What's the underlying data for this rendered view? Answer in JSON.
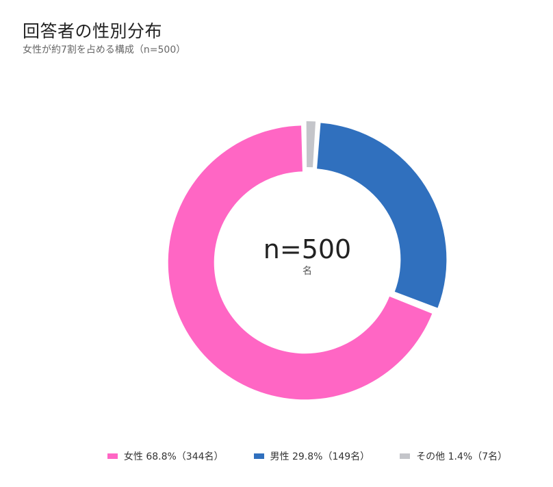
{
  "header": {
    "title": "回答者の性別分布",
    "subtitle": "女性が約7割を占める構成（n=500）"
  },
  "center": {
    "value": "n=500",
    "unit": "名"
  },
  "legend": [
    {
      "label": "女性 68.8%（344名）",
      "color": "#ff66c4"
    },
    {
      "label": "男性 29.8%（149名）",
      "color": "#3070be"
    },
    {
      "label": "その他 1.4%（7名）",
      "color": "#c4c5ca"
    }
  ],
  "chart_data": {
    "type": "pie",
    "variant": "donut",
    "title": "回答者の性別分布",
    "subtitle": "女性が約7割を占める構成（n=500）",
    "categories": [
      "女性",
      "男性",
      "その他"
    ],
    "values": [
      344,
      149,
      7
    ],
    "percentages": [
      68.8,
      29.8,
      1.4
    ],
    "colors": [
      "#ff66c4",
      "#3070be",
      "#c4c5ca"
    ],
    "center_label": "n=500 名",
    "legend_position": "bottom",
    "start_angle": "top, clockwise: 男性, 女性, その他 ordering by position — その他 at top, 男性 right, 女性 left/bottom"
  }
}
